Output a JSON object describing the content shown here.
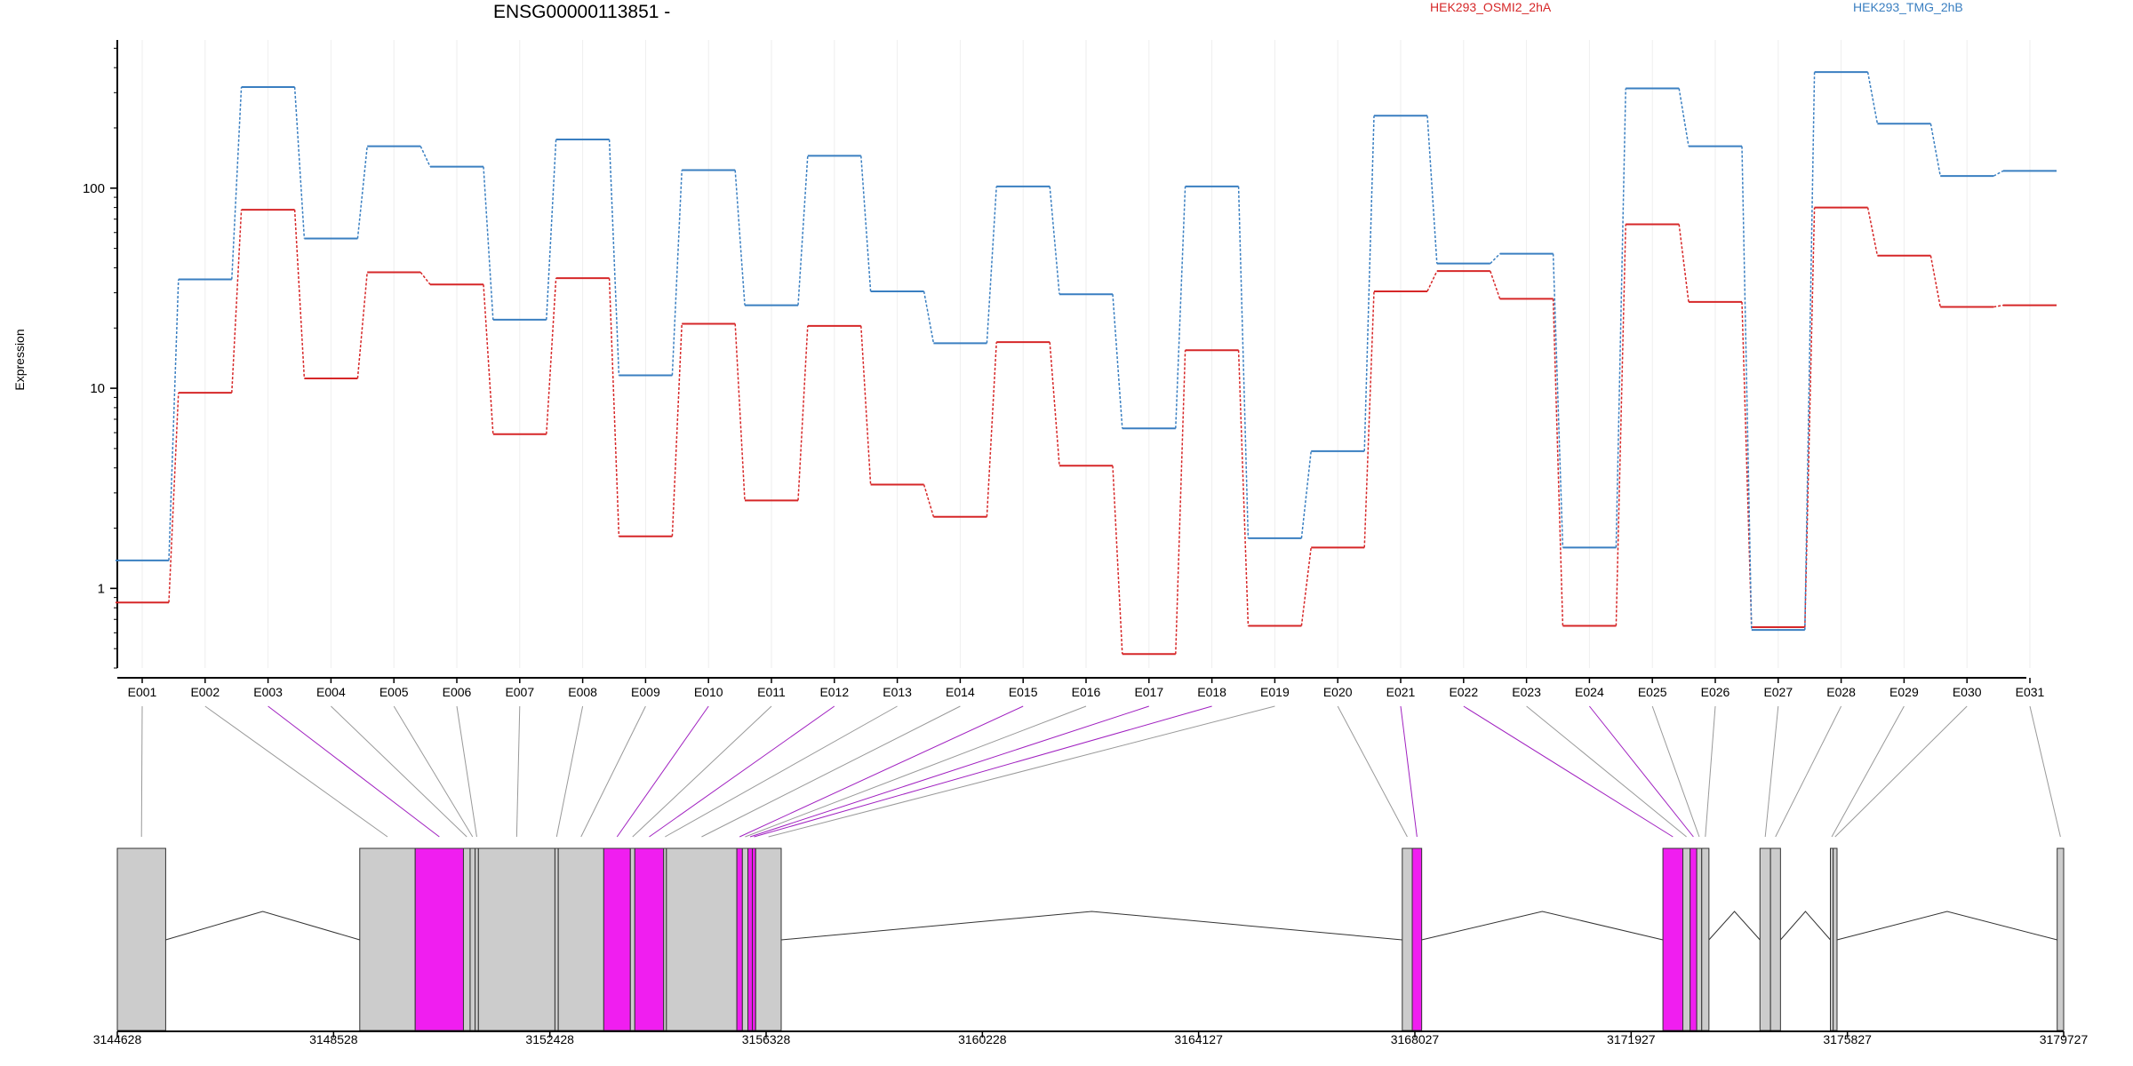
{
  "chart_data": {
    "type": "line",
    "title": "ENSG00000113851 -",
    "ylabel": "Expression",
    "yscale": "log",
    "ylim": [
      0.4,
      550
    ],
    "grid": "vertical-light",
    "legend_position": "top",
    "y_ticks": [
      {
        "label": "1",
        "value": 1
      },
      {
        "label": "10",
        "value": 10
      },
      {
        "label": "100",
        "value": 100
      }
    ],
    "categories": [
      "E001",
      "E002",
      "E003",
      "E004",
      "E005",
      "E006",
      "E007",
      "E008",
      "E009",
      "E010",
      "E011",
      "E012",
      "E013",
      "E014",
      "E015",
      "E016",
      "E017",
      "E018",
      "E019",
      "E020",
      "E021",
      "E022",
      "E023",
      "E024",
      "E025",
      "E026",
      "E027",
      "E028",
      "E029",
      "E030",
      "E031"
    ],
    "series": [
      {
        "name": "HEK293_OSMI2_2hA",
        "color": "#d62728",
        "values": [
          0.85,
          9.5,
          78,
          11.2,
          38,
          33,
          5.9,
          35.5,
          1.82,
          21,
          2.75,
          20.5,
          3.3,
          2.28,
          17,
          4.1,
          0.47,
          15.5,
          0.65,
          1.6,
          30.5,
          38.5,
          28,
          0.65,
          66,
          27,
          0.64,
          80,
          46,
          25.5,
          26
        ]
      },
      {
        "name": "HEK293_TMG_2hB",
        "color": "#3a7fc1",
        "values": [
          1.38,
          35,
          320,
          56,
          162,
          128,
          22,
          175,
          11.6,
          123,
          26,
          145,
          30.5,
          16.8,
          102,
          29.5,
          6.3,
          102,
          1.78,
          4.85,
          230,
          42,
          47,
          1.6,
          315,
          162,
          0.62,
          380,
          210,
          115,
          122
        ]
      }
    ],
    "gene_axis": {
      "ticks": [
        "3144628",
        "3148528",
        "3152428",
        "3156328",
        "3160228",
        "3164127",
        "3168027",
        "3171927",
        "3175827",
        "3179727"
      ],
      "range": [
        3144628,
        3179727
      ]
    },
    "exons": [
      {
        "id": "E001",
        "start": 3144628,
        "end": 3145500,
        "highlight": false
      },
      {
        "id": "E002",
        "start": 3149000,
        "end": 3150000,
        "highlight": false
      },
      {
        "id": "E003",
        "start": 3150000,
        "end": 3150870,
        "highlight": true
      },
      {
        "id": "E004",
        "start": 3150870,
        "end": 3150990,
        "highlight": false
      },
      {
        "id": "E005",
        "start": 3150990,
        "end": 3151080,
        "highlight": false
      },
      {
        "id": "E006",
        "start": 3151080,
        "end": 3151140,
        "highlight": false
      },
      {
        "id": "E007",
        "start": 3151140,
        "end": 3152520,
        "highlight": false
      },
      {
        "id": "E008",
        "start": 3152520,
        "end": 3152580,
        "highlight": false
      },
      {
        "id": "E009",
        "start": 3152580,
        "end": 3153400,
        "highlight": false
      },
      {
        "id": "E010",
        "start": 3153400,
        "end": 3153880,
        "highlight": true
      },
      {
        "id": "E011",
        "start": 3153880,
        "end": 3153960,
        "highlight": false
      },
      {
        "id": "E012",
        "start": 3153960,
        "end": 3154480,
        "highlight": true
      },
      {
        "id": "E013",
        "start": 3154480,
        "end": 3154530,
        "highlight": false
      },
      {
        "id": "E014",
        "start": 3154530,
        "end": 3155800,
        "highlight": false
      },
      {
        "id": "E015",
        "start": 3155800,
        "end": 3155900,
        "highlight": true
      },
      {
        "id": "E016",
        "start": 3155900,
        "end": 3156000,
        "highlight": false
      },
      {
        "id": "E017",
        "start": 3156000,
        "end": 3156080,
        "highlight": true
      },
      {
        "id": "E018",
        "start": 3156080,
        "end": 3156140,
        "highlight": true
      },
      {
        "id": "E019",
        "start": 3156140,
        "end": 3156600,
        "highlight": false
      },
      {
        "id": "E020",
        "start": 3167800,
        "end": 3167980,
        "highlight": false
      },
      {
        "id": "E021",
        "start": 3167980,
        "end": 3168150,
        "highlight": true
      },
      {
        "id": "E022",
        "start": 3172500,
        "end": 3172860,
        "highlight": true
      },
      {
        "id": "E023",
        "start": 3172860,
        "end": 3172990,
        "highlight": false
      },
      {
        "id": "E024",
        "start": 3172990,
        "end": 3173110,
        "highlight": true
      },
      {
        "id": "E025",
        "start": 3173110,
        "end": 3173200,
        "highlight": false
      },
      {
        "id": "E026",
        "start": 3173200,
        "end": 3173330,
        "highlight": false
      },
      {
        "id": "E027",
        "start": 3174250,
        "end": 3174440,
        "highlight": false
      },
      {
        "id": "E028",
        "start": 3174440,
        "end": 3174620,
        "highlight": false
      },
      {
        "id": "E029",
        "start": 3175520,
        "end": 3175570,
        "highlight": false
      },
      {
        "id": "E030",
        "start": 3175570,
        "end": 3175640,
        "highlight": false
      },
      {
        "id": "E031",
        "start": 3179610,
        "end": 3179727,
        "highlight": false
      }
    ],
    "exon_colors": {
      "normal": "#cccccc",
      "highlight": "#f01ef0",
      "highlight_line": "#a020c0",
      "normal_line": "#999999"
    }
  }
}
